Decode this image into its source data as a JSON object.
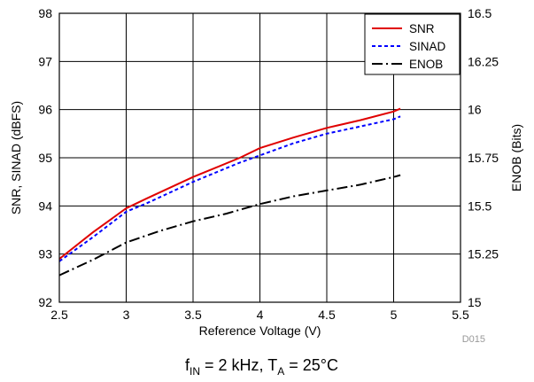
{
  "chart_data": {
    "type": "line",
    "xlabel": "Reference Voltage (V)",
    "ylabel": "SNR, SINAD (dBFS)",
    "y2label": "ENOB (Bits)",
    "xlim": [
      2.5,
      5.5
    ],
    "ylim": [
      92,
      98
    ],
    "y2lim": [
      15,
      16.5
    ],
    "xticks": [
      "2.5",
      "3",
      "3.5",
      "4",
      "4.5",
      "5",
      "5.5"
    ],
    "yticks": [
      "92",
      "93",
      "94",
      "95",
      "96",
      "97",
      "98"
    ],
    "y2ticks": [
      "15",
      "15.25",
      "15.5",
      "15.75",
      "16",
      "16.25",
      "16.5"
    ],
    "grid": true,
    "legend_position": "top-right",
    "series": [
      {
        "name": "SNR",
        "axis": "left",
        "color": "#e00000",
        "dash": "solid",
        "x": [
          2.5,
          2.75,
          3.0,
          3.15,
          3.5,
          3.85,
          4.0,
          4.25,
          4.5,
          4.75,
          5.0,
          5.05
        ],
        "y": [
          92.9,
          93.45,
          93.95,
          94.15,
          94.6,
          95.0,
          95.2,
          95.42,
          95.62,
          95.78,
          95.96,
          96.02
        ]
      },
      {
        "name": "SINAD",
        "axis": "left",
        "color": "#0000ff",
        "dash": "dotted",
        "x": [
          2.5,
          2.75,
          3.0,
          3.15,
          3.5,
          3.85,
          4.0,
          4.25,
          4.5,
          4.75,
          5.0,
          5.05
        ],
        "y": [
          92.85,
          93.35,
          93.88,
          94.05,
          94.5,
          94.9,
          95.05,
          95.3,
          95.5,
          95.65,
          95.8,
          95.86
        ]
      },
      {
        "name": "ENOB",
        "axis": "right",
        "color": "#000000",
        "dash": "dashdot",
        "x": [
          2.5,
          2.75,
          3.0,
          3.25,
          3.5,
          3.75,
          4.0,
          4.25,
          4.5,
          4.75,
          5.0,
          5.05
        ],
        "y": [
          15.14,
          15.22,
          15.31,
          15.37,
          15.42,
          15.46,
          15.51,
          15.55,
          15.58,
          15.61,
          15.65,
          15.66
        ]
      }
    ],
    "caption": {
      "f": "f",
      "f_sub": "IN",
      "mid": " = 2 kHz, T",
      "t_sub": "A",
      "end": " = 25°C"
    },
    "code": "D015"
  }
}
